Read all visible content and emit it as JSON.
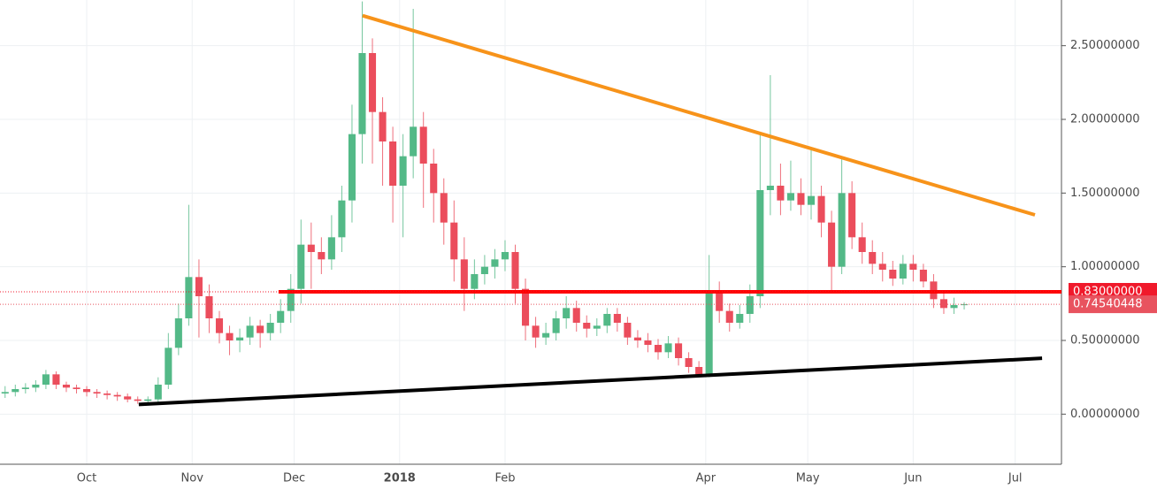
{
  "chart_data": {
    "type": "candlestick",
    "up_color": "#53b987",
    "down_color": "#eb4d5c",
    "grid": true,
    "xlim": [
      -25.5,
      286.6
    ],
    "ylim": [
      -0.34,
      2.81
    ],
    "xticks": [
      {
        "value": 0,
        "label": "Oct"
      },
      {
        "value": 31,
        "label": "Nov"
      },
      {
        "value": 61,
        "label": "Dec"
      },
      {
        "value": 92,
        "label": "2018",
        "bold": true
      },
      {
        "value": 123,
        "label": "Feb"
      },
      {
        "value": 182,
        "label": "Apr"
      },
      {
        "value": 212,
        "label": "May"
      },
      {
        "value": 243,
        "label": "Jun"
      },
      {
        "value": 273,
        "label": "Jul"
      }
    ],
    "yticks": [
      {
        "value": 0,
        "label": "0.00000000"
      },
      {
        "value": 0.5,
        "label": "0.50000000"
      },
      {
        "value": 1,
        "label": "1.00000000"
      },
      {
        "value": 1.5,
        "label": "1.50000000"
      },
      {
        "value": 2,
        "label": "2.00000000"
      },
      {
        "value": 2.5,
        "label": "2.50000000"
      }
    ],
    "x": [
      -24,
      -21,
      -18,
      -15,
      -12,
      -9,
      -6,
      -3,
      0,
      3,
      6,
      9,
      12,
      15,
      18,
      21,
      24,
      27,
      30,
      33,
      36,
      39,
      42,
      45,
      48,
      51,
      54,
      57,
      60,
      63,
      66,
      69,
      72,
      75,
      78,
      81,
      84,
      87,
      90,
      93,
      96,
      99,
      102,
      105,
      108,
      111,
      114,
      117,
      120,
      123,
      126,
      129,
      132,
      135,
      138,
      141,
      144,
      147,
      150,
      153,
      156,
      159,
      162,
      165,
      168,
      171,
      174,
      177,
      180,
      183,
      186,
      189,
      192,
      195,
      198,
      201,
      204,
      207,
      210,
      213,
      216,
      219,
      222,
      225,
      228,
      231,
      234,
      237,
      240,
      243,
      246,
      249,
      252,
      255,
      258
    ],
    "open": [
      0.14,
      0.15,
      0.17,
      0.18,
      0.2,
      0.27,
      0.2,
      0.18,
      0.17,
      0.15,
      0.14,
      0.13,
      0.12,
      0.1,
      0.09,
      0.1,
      0.2,
      0.45,
      0.65,
      0.93,
      0.8,
      0.65,
      0.55,
      0.5,
      0.52,
      0.6,
      0.55,
      0.62,
      0.7,
      0.85,
      1.15,
      1.1,
      1.05,
      1.2,
      1.45,
      1.9,
      2.45,
      2.05,
      1.85,
      1.55,
      1.75,
      1.95,
      1.7,
      1.5,
      1.3,
      1.05,
      0.85,
      0.95,
      1.0,
      1.05,
      1.1,
      0.85,
      0.6,
      0.52,
      0.55,
      0.65,
      0.72,
      0.62,
      0.58,
      0.6,
      0.68,
      0.62,
      0.52,
      0.5,
      0.47,
      0.42,
      0.48,
      0.38,
      0.32,
      0.27,
      0.82,
      0.7,
      0.62,
      0.68,
      0.8,
      1.52,
      1.55,
      1.45,
      1.5,
      1.42,
      1.48,
      1.3,
      1.0,
      1.5,
      1.2,
      1.1,
      1.02,
      0.98,
      0.92,
      1.02,
      0.98,
      0.9,
      0.78,
      0.72,
      0.74
    ],
    "high": [
      0.19,
      0.2,
      0.21,
      0.23,
      0.3,
      0.29,
      0.22,
      0.2,
      0.19,
      0.17,
      0.16,
      0.15,
      0.14,
      0.12,
      0.12,
      0.25,
      0.55,
      0.75,
      1.42,
      1.05,
      0.88,
      0.7,
      0.6,
      0.58,
      0.66,
      0.64,
      0.68,
      0.78,
      0.95,
      1.32,
      1.3,
      1.2,
      1.35,
      1.55,
      2.1,
      2.8,
      2.55,
      2.15,
      1.95,
      1.9,
      2.75,
      2.05,
      1.8,
      1.6,
      1.45,
      1.2,
      1.05,
      1.08,
      1.12,
      1.18,
      1.15,
      0.92,
      0.66,
      0.62,
      0.7,
      0.8,
      0.77,
      0.67,
      0.65,
      0.72,
      0.72,
      0.66,
      0.57,
      0.55,
      0.51,
      0.53,
      0.52,
      0.42,
      0.36,
      1.08,
      0.9,
      0.75,
      0.74,
      0.88,
      1.9,
      2.3,
      1.7,
      1.72,
      1.6,
      1.8,
      1.55,
      1.38,
      1.75,
      1.58,
      1.3,
      1.18,
      1.1,
      1.04,
      1.08,
      1.08,
      1.02,
      0.95,
      0.83,
      0.79,
      0.76
    ],
    "low": [
      0.11,
      0.12,
      0.14,
      0.15,
      0.17,
      0.17,
      0.15,
      0.14,
      0.12,
      0.11,
      0.1,
      0.09,
      0.08,
      0.07,
      0.07,
      0.08,
      0.17,
      0.4,
      0.6,
      0.52,
      0.55,
      0.48,
      0.4,
      0.42,
      0.47,
      0.45,
      0.5,
      0.55,
      0.62,
      0.75,
      0.85,
      0.95,
      0.98,
      1.1,
      1.3,
      1.7,
      1.7,
      1.55,
      1.3,
      1.2,
      1.6,
      1.4,
      1.3,
      1.15,
      0.9,
      0.7,
      0.78,
      0.88,
      0.92,
      0.97,
      0.75,
      0.5,
      0.45,
      0.47,
      0.5,
      0.58,
      0.56,
      0.52,
      0.53,
      0.55,
      0.56,
      0.47,
      0.45,
      0.42,
      0.37,
      0.38,
      0.33,
      0.28,
      0.25,
      0.25,
      0.62,
      0.56,
      0.58,
      0.62,
      0.72,
      1.35,
      1.35,
      1.38,
      1.35,
      1.32,
      1.2,
      0.82,
      0.95,
      1.12,
      1.02,
      0.95,
      0.9,
      0.87,
      0.88,
      0.9,
      0.86,
      0.72,
      0.68,
      0.68,
      0.71
    ],
    "close": [
      0.15,
      0.17,
      0.18,
      0.2,
      0.27,
      0.2,
      0.18,
      0.17,
      0.15,
      0.14,
      0.13,
      0.12,
      0.1,
      0.09,
      0.1,
      0.2,
      0.45,
      0.65,
      0.93,
      0.8,
      0.65,
      0.55,
      0.5,
      0.52,
      0.6,
      0.55,
      0.62,
      0.7,
      0.85,
      1.15,
      1.1,
      1.05,
      1.2,
      1.45,
      1.9,
      2.45,
      2.05,
      1.85,
      1.55,
      1.75,
      1.95,
      1.7,
      1.5,
      1.3,
      1.05,
      0.85,
      0.95,
      1.0,
      1.05,
      1.1,
      0.85,
      0.6,
      0.52,
      0.55,
      0.65,
      0.72,
      0.62,
      0.58,
      0.6,
      0.68,
      0.62,
      0.52,
      0.5,
      0.47,
      0.42,
      0.48,
      0.38,
      0.32,
      0.27,
      0.82,
      0.7,
      0.62,
      0.68,
      0.8,
      1.52,
      1.55,
      1.45,
      1.5,
      1.42,
      1.48,
      1.3,
      1.0,
      1.5,
      1.2,
      1.1,
      1.02,
      0.98,
      0.92,
      1.02,
      0.98,
      0.9,
      0.78,
      0.72,
      0.74,
      0.74540448
    ],
    "lines": [
      {
        "color": "#f7931a",
        "x": [
          81.1,
          278.8
        ],
        "y": [
          2.704,
          1.352
        ]
      },
      {
        "color": "#000000",
        "x": [
          15.3,
          280.9
        ],
        "y": [
          0.066,
          0.379
        ]
      },
      {
        "color": "#ff0000",
        "x": [
          56.4,
          286.6
        ],
        "y": [
          0.83,
          0.83
        ]
      }
    ],
    "price_labels": [
      {
        "value": 0.83,
        "label": "0.83000000",
        "color": "#f0192b"
      },
      {
        "value": 0.74540448,
        "label": "0.74540448",
        "color": "#e8535f"
      }
    ]
  }
}
